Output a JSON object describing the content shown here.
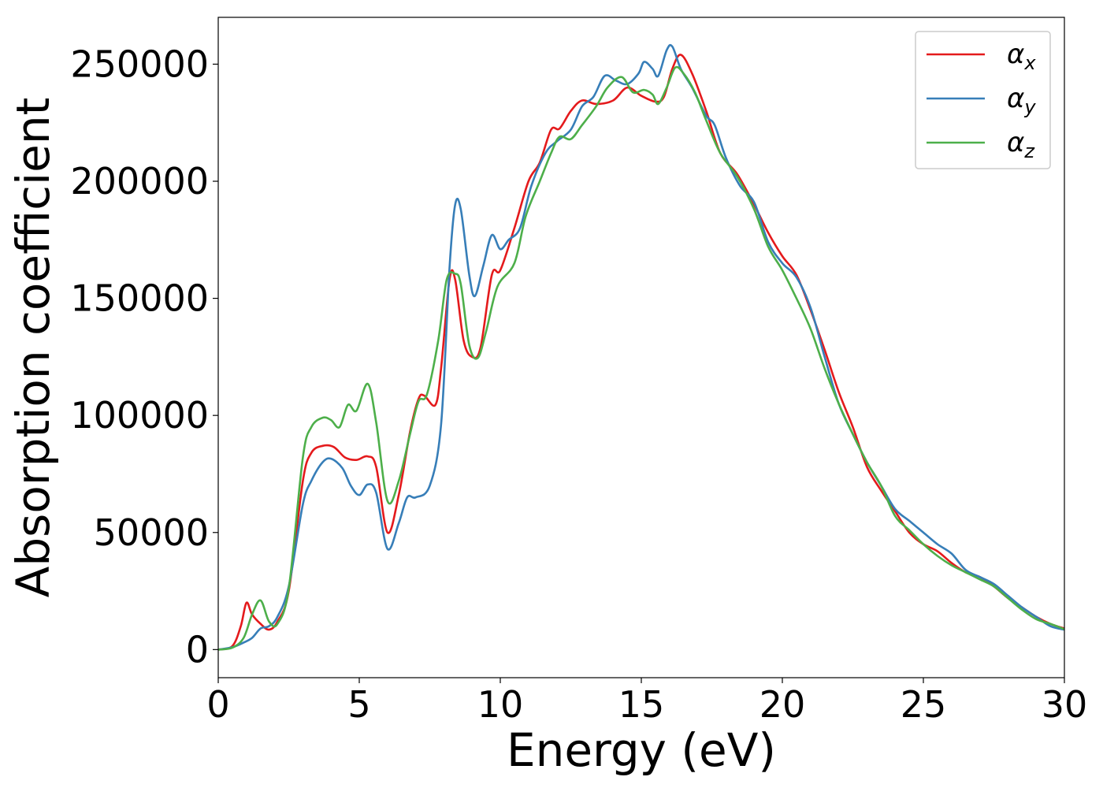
{
  "chart_data": {
    "type": "line",
    "title": "",
    "xlabel": "Energy (eV)",
    "ylabel": "Absorption coefficient",
    "xlim": [
      0,
      30
    ],
    "ylim": [
      -12000,
      270000
    ],
    "xticks": [
      0,
      5,
      10,
      15,
      20,
      25,
      30
    ],
    "yticks": [
      0,
      50000,
      100000,
      150000,
      200000,
      250000
    ],
    "xtick_labels": [
      "0",
      "5",
      "10",
      "15",
      "20",
      "25",
      "30"
    ],
    "ytick_labels": [
      "0",
      "50000",
      "100000",
      "150000",
      "200000",
      "250000"
    ],
    "grid": false,
    "legend": "top-right",
    "series": [
      {
        "name": "αx",
        "symbol": "α",
        "subscript": "x",
        "color": "#e41a1c",
        "points": [
          [
            0,
            0
          ],
          [
            0.5,
            1500
          ],
          [
            0.8,
            10000
          ],
          [
            1.0,
            20000
          ],
          [
            1.2,
            15000
          ],
          [
            1.5,
            11000
          ],
          [
            1.8,
            8500
          ],
          [
            2.1,
            12000
          ],
          [
            2.5,
            25000
          ],
          [
            3.0,
            72000
          ],
          [
            3.3,
            84000
          ],
          [
            3.7,
            87000
          ],
          [
            4.1,
            86500
          ],
          [
            4.5,
            82000
          ],
          [
            4.9,
            81000
          ],
          [
            5.3,
            82500
          ],
          [
            5.6,
            78000
          ],
          [
            6.0,
            50000
          ],
          [
            6.4,
            66000
          ],
          [
            6.8,
            93000
          ],
          [
            7.1,
            107000
          ],
          [
            7.3,
            108500
          ],
          [
            7.7,
            104500
          ],
          [
            7.9,
            120000
          ],
          [
            8.2,
            158000
          ],
          [
            8.4,
            158000
          ],
          [
            8.7,
            132000
          ],
          [
            9.0,
            125000
          ],
          [
            9.3,
            129000
          ],
          [
            9.7,
            160000
          ],
          [
            10.0,
            162000
          ],
          [
            10.5,
            180000
          ],
          [
            11.0,
            200000
          ],
          [
            11.4,
            208000
          ],
          [
            11.8,
            222000
          ],
          [
            12.1,
            222500
          ],
          [
            12.5,
            230000
          ],
          [
            12.9,
            234500
          ],
          [
            13.4,
            233000
          ],
          [
            14.0,
            234500
          ],
          [
            14.5,
            240000
          ],
          [
            15.0,
            236500
          ],
          [
            15.5,
            234000
          ],
          [
            15.8,
            236000
          ],
          [
            16.1,
            248000
          ],
          [
            16.4,
            254000
          ],
          [
            16.8,
            246000
          ],
          [
            17.3,
            230000
          ],
          [
            17.8,
            212000
          ],
          [
            18.4,
            203000
          ],
          [
            19.0,
            190000
          ],
          [
            19.5,
            178000
          ],
          [
            20.0,
            168000
          ],
          [
            20.5,
            160000
          ],
          [
            21.0,
            145000
          ],
          [
            21.5,
            128000
          ],
          [
            22.0,
            110000
          ],
          [
            22.5,
            95000
          ],
          [
            23.0,
            78000
          ],
          [
            23.5,
            68000
          ],
          [
            24.0,
            59000
          ],
          [
            24.5,
            50000
          ],
          [
            25.0,
            45000
          ],
          [
            25.5,
            42000
          ],
          [
            26.0,
            37000
          ],
          [
            26.5,
            33000
          ],
          [
            27.0,
            31000
          ],
          [
            27.5,
            27000
          ],
          [
            28.0,
            22000
          ],
          [
            28.5,
            18000
          ],
          [
            29.0,
            14000
          ],
          [
            29.5,
            11000
          ],
          [
            30.0,
            9000
          ]
        ]
      },
      {
        "name": "αy",
        "symbol": "α",
        "subscript": "y",
        "color": "#377eb8",
        "points": [
          [
            0,
            0
          ],
          [
            0.5,
            1000
          ],
          [
            0.9,
            3000
          ],
          [
            1.2,
            5000
          ],
          [
            1.5,
            9000
          ],
          [
            1.8,
            10000
          ],
          [
            2.1,
            14000
          ],
          [
            2.5,
            27000
          ],
          [
            3.0,
            62000
          ],
          [
            3.3,
            72000
          ],
          [
            3.7,
            80000
          ],
          [
            4.0,
            81500
          ],
          [
            4.4,
            77500
          ],
          [
            4.7,
            70000
          ],
          [
            5.0,
            66000
          ],
          [
            5.3,
            70500
          ],
          [
            5.6,
            67000
          ],
          [
            6.0,
            43000
          ],
          [
            6.4,
            54000
          ],
          [
            6.7,
            65000
          ],
          [
            7.0,
            65000
          ],
          [
            7.5,
            70000
          ],
          [
            7.9,
            96000
          ],
          [
            8.2,
            163000
          ],
          [
            8.4,
            190000
          ],
          [
            8.6,
            188000
          ],
          [
            8.9,
            160000
          ],
          [
            9.1,
            151000
          ],
          [
            9.4,
            164000
          ],
          [
            9.7,
            177000
          ],
          [
            10.0,
            171000
          ],
          [
            10.3,
            175000
          ],
          [
            10.7,
            180000
          ],
          [
            11.1,
            198000
          ],
          [
            11.6,
            212000
          ],
          [
            12.0,
            217000
          ],
          [
            12.5,
            222000
          ],
          [
            12.9,
            232000
          ],
          [
            13.3,
            236000
          ],
          [
            13.7,
            245000
          ],
          [
            14.1,
            243000
          ],
          [
            14.5,
            241500
          ],
          [
            14.9,
            246000
          ],
          [
            15.1,
            251000
          ],
          [
            15.4,
            248000
          ],
          [
            15.6,
            245000
          ],
          [
            15.9,
            256000
          ],
          [
            16.1,
            257500
          ],
          [
            16.4,
            248000
          ],
          [
            16.8,
            240000
          ],
          [
            17.3,
            228000
          ],
          [
            17.6,
            224000
          ],
          [
            18.0,
            210000
          ],
          [
            18.5,
            198000
          ],
          [
            19.0,
            191000
          ],
          [
            19.5,
            174000
          ],
          [
            20.0,
            165000
          ],
          [
            20.5,
            159000
          ],
          [
            21.0,
            146000
          ],
          [
            21.5,
            125000
          ],
          [
            22.0,
            105000
          ],
          [
            22.5,
            92000
          ],
          [
            23.0,
            80000
          ],
          [
            23.5,
            70000
          ],
          [
            24.0,
            60000
          ],
          [
            24.5,
            55000
          ],
          [
            25.0,
            50000
          ],
          [
            25.5,
            45000
          ],
          [
            26.0,
            41000
          ],
          [
            26.5,
            34000
          ],
          [
            27.0,
            31000
          ],
          [
            27.5,
            28000
          ],
          [
            28.0,
            23000
          ],
          [
            28.5,
            18000
          ],
          [
            29.0,
            14000
          ],
          [
            29.5,
            10000
          ],
          [
            30.0,
            8500
          ]
        ]
      },
      {
        "name": "αz",
        "symbol": "α",
        "subscript": "z",
        "color": "#4daf4a",
        "points": [
          [
            0,
            0
          ],
          [
            0.5,
            800
          ],
          [
            0.9,
            5000
          ],
          [
            1.2,
            15000
          ],
          [
            1.5,
            21000
          ],
          [
            1.8,
            12000
          ],
          [
            2.1,
            11000
          ],
          [
            2.5,
            26000
          ],
          [
            3.0,
            82000
          ],
          [
            3.3,
            95000
          ],
          [
            3.7,
            99000
          ],
          [
            4.0,
            98000
          ],
          [
            4.3,
            95000
          ],
          [
            4.6,
            104500
          ],
          [
            4.9,
            102000
          ],
          [
            5.3,
            113500
          ],
          [
            5.6,
            97000
          ],
          [
            6.0,
            63500
          ],
          [
            6.4,
            72000
          ],
          [
            6.8,
            92000
          ],
          [
            7.1,
            106000
          ],
          [
            7.4,
            109000
          ],
          [
            7.8,
            132000
          ],
          [
            8.1,
            158000
          ],
          [
            8.4,
            160500
          ],
          [
            8.6,
            156000
          ],
          [
            8.9,
            130000
          ],
          [
            9.2,
            124500
          ],
          [
            9.5,
            136000
          ],
          [
            9.9,
            155000
          ],
          [
            10.5,
            165000
          ],
          [
            10.9,
            185000
          ],
          [
            11.4,
            200000
          ],
          [
            11.8,
            212000
          ],
          [
            12.1,
            219000
          ],
          [
            12.5,
            218000
          ],
          [
            12.9,
            224000
          ],
          [
            13.4,
            232000
          ],
          [
            13.8,
            240000
          ],
          [
            14.3,
            244500
          ],
          [
            14.7,
            238000
          ],
          [
            15.1,
            239000
          ],
          [
            15.4,
            237000
          ],
          [
            15.6,
            233000
          ],
          [
            15.9,
            240000
          ],
          [
            16.2,
            248500
          ],
          [
            16.5,
            246000
          ],
          [
            16.9,
            238000
          ],
          [
            17.3,
            226000
          ],
          [
            17.8,
            212000
          ],
          [
            18.4,
            202000
          ],
          [
            19.0,
            188000
          ],
          [
            19.5,
            172000
          ],
          [
            20.0,
            162000
          ],
          [
            20.5,
            150000
          ],
          [
            21.0,
            137000
          ],
          [
            21.5,
            120000
          ],
          [
            22.0,
            105000
          ],
          [
            22.5,
            92000
          ],
          [
            23.0,
            80000
          ],
          [
            23.5,
            70000
          ],
          [
            24.0,
            57000
          ],
          [
            24.5,
            51000
          ],
          [
            25.0,
            45000
          ],
          [
            25.5,
            40000
          ],
          [
            26.0,
            36000
          ],
          [
            26.5,
            33000
          ],
          [
            27.0,
            30000
          ],
          [
            27.5,
            27000
          ],
          [
            28.0,
            22000
          ],
          [
            28.5,
            17000
          ],
          [
            29.0,
            13000
          ],
          [
            29.5,
            11000
          ],
          [
            30.0,
            8700
          ]
        ]
      }
    ]
  }
}
